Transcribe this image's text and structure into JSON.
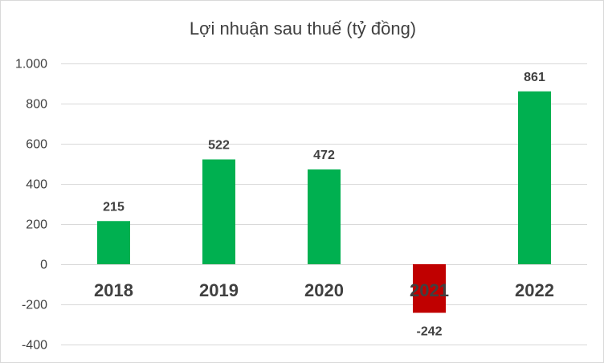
{
  "chart_data": {
    "type": "bar",
    "title": "Lợi nhuận sau thuế (tỷ đồng)",
    "categories": [
      "2018",
      "2019",
      "2020",
      "2021",
      "2022"
    ],
    "values": [
      215,
      522,
      472,
      -242,
      861
    ],
    "data_labels": [
      "215",
      "522",
      "472",
      "-242",
      "861"
    ],
    "ylim": [
      -400,
      1000
    ],
    "yticks": [
      -400,
      -200,
      0,
      200,
      400,
      600,
      800,
      1000
    ],
    "ytick_labels": [
      "-400",
      "-200",
      "0",
      "200",
      "400",
      "600",
      "800",
      "1.000"
    ],
    "grid": true,
    "legend": false,
    "colors": {
      "positive": "#00b050",
      "negative": "#c00000",
      "grid": "#d9d9d9",
      "text": "#404040"
    }
  }
}
